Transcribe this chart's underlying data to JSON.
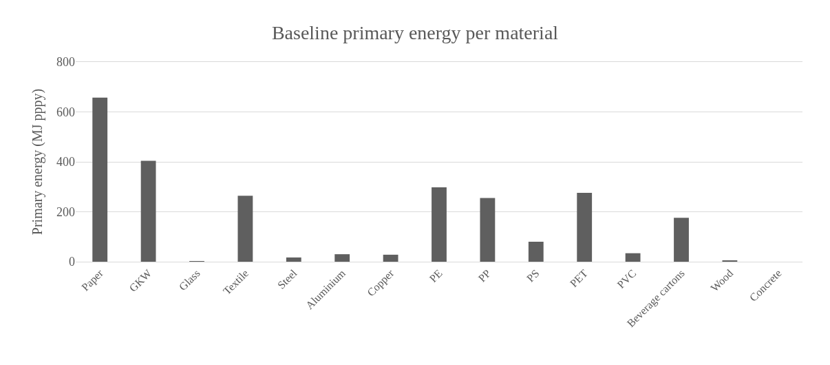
{
  "chart_data": {
    "type": "bar",
    "title": "Baseline primary energy per material",
    "ylabel": "Primary energy (MJ pppy)",
    "categories": [
      "Paper",
      "GKW",
      "Glass",
      "Textile",
      "Steel",
      "Aluminium",
      "Copper",
      "PE",
      "PP",
      "PS",
      "PET",
      "PVC",
      "Beverage cartons",
      "Wood",
      "Concrete"
    ],
    "values": [
      657,
      404,
      1,
      264,
      17,
      30,
      28,
      298,
      255,
      80,
      276,
      34,
      176,
      4,
      0
    ],
    "color": "#5f5f5f",
    "ylim": [
      0,
      800
    ],
    "yticks": [
      0,
      200,
      400,
      600,
      800
    ],
    "grid": "y"
  }
}
